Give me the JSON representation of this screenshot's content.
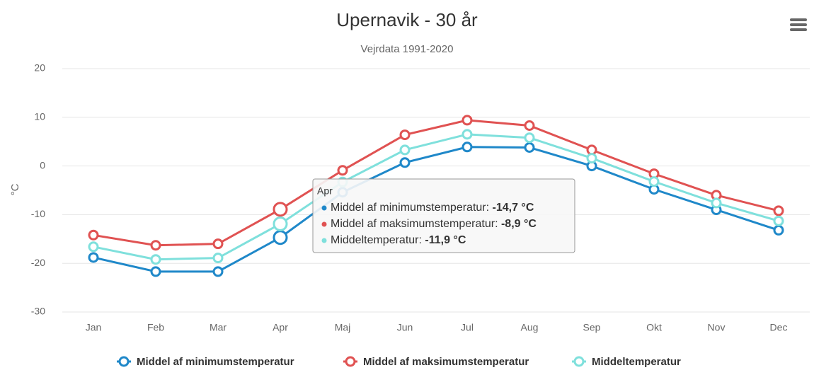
{
  "chart_data": {
    "type": "line",
    "title": "Upernavik - 30 år",
    "subtitle": "Vejrdata 1991-2020",
    "y_label": "°C",
    "categories": [
      "Jan",
      "Feb",
      "Mar",
      "Apr",
      "Maj",
      "Jun",
      "Jul",
      "Aug",
      "Sep",
      "Okt",
      "Nov",
      "Dec"
    ],
    "series": [
      {
        "name": "Middel af minimumstemperatur",
        "color": "#1f88c9",
        "values": [
          -18.8,
          -21.7,
          -21.7,
          -14.7,
          -5.4,
          0.7,
          3.9,
          3.8,
          0.0,
          -4.8,
          -9.0,
          -13.2
        ]
      },
      {
        "name": "Middel af maksimumstemperatur",
        "color": "#e05252",
        "values": [
          -14.2,
          -16.3,
          -16.0,
          -8.9,
          -0.9,
          6.4,
          9.4,
          8.3,
          3.3,
          -1.6,
          -6.0,
          -9.2
        ]
      },
      {
        "name": "Middeltemperatur",
        "color": "#7fe0dc",
        "values": [
          -16.6,
          -19.2,
          -18.9,
          -11.9,
          -3.3,
          3.3,
          6.5,
          5.8,
          1.6,
          -3.2,
          -7.6,
          -11.3
        ]
      }
    ],
    "ylim": [
      -30,
      20
    ],
    "yticks": [
      -30,
      -20,
      -10,
      0,
      10,
      20
    ],
    "grid": true,
    "legend": "bottom",
    "tooltip": {
      "category": "Apr",
      "labels": [
        "-14,7 °C",
        "-8,9 °C",
        "-11,9 °C"
      ]
    }
  }
}
